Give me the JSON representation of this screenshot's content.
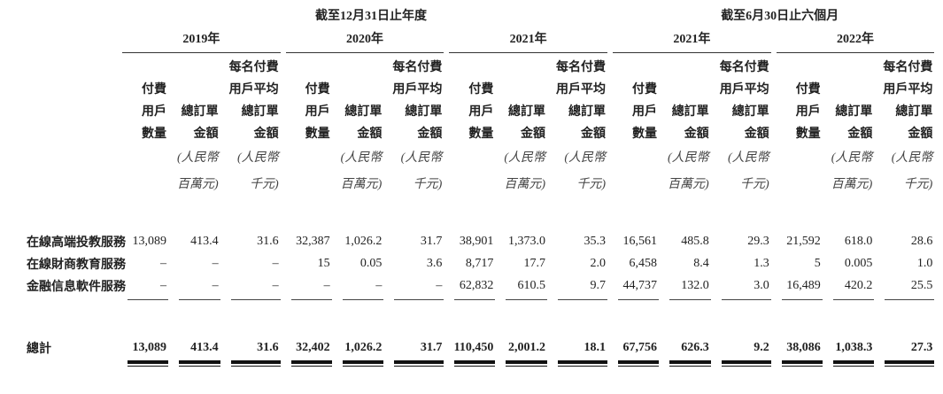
{
  "header": {
    "period_fy": "截至12月31日止年度",
    "period_h1": "截至6月30日止六個月",
    "years": [
      "2019年",
      "2020年",
      "2021年",
      "2021年",
      "2022年"
    ],
    "col_headers": {
      "line1": [
        "",
        "",
        "每名付費"
      ],
      "line2": [
        "付費",
        "",
        "用戶平均"
      ],
      "line3": [
        "用戶",
        "總訂單",
        "總訂單"
      ],
      "line4": [
        "數量",
        "金額",
        "金額"
      ],
      "unit1": [
        "",
        "(人民幣",
        "(人民幣"
      ],
      "unit2": [
        "",
        "百萬元)",
        "千元)"
      ]
    }
  },
  "rows": [
    {
      "label": "在線高端投教服務",
      "values": [
        "13,089",
        "413.4",
        "31.6",
        "32,387",
        "1,026.2",
        "31.7",
        "38,901",
        "1,373.0",
        "35.3",
        "16,561",
        "485.8",
        "29.3",
        "21,592",
        "618.0",
        "28.6"
      ]
    },
    {
      "label": "在線財商教育服務",
      "values": [
        "–",
        "–",
        "–",
        "15",
        "0.05",
        "3.6",
        "8,717",
        "17.7",
        "2.0",
        "6,458",
        "8.4",
        "1.3",
        "5",
        "0.005",
        "1.0"
      ]
    },
    {
      "label": "金融信息軟件服務",
      "values": [
        "–",
        "–",
        "–",
        "–",
        "–",
        "–",
        "62,832",
        "610.5",
        "9.7",
        "44,737",
        "132.0",
        "3.0",
        "16,489",
        "420.2",
        "25.5"
      ]
    }
  ],
  "total": {
    "label": "總計",
    "values": [
      "13,089",
      "413.4",
      "31.6",
      "32,402",
      "1,026.2",
      "31.7",
      "110,450",
      "2,001.2",
      "18.1",
      "67,756",
      "626.3",
      "9.2",
      "38,086",
      "1,038.3",
      "27.3"
    ]
  }
}
